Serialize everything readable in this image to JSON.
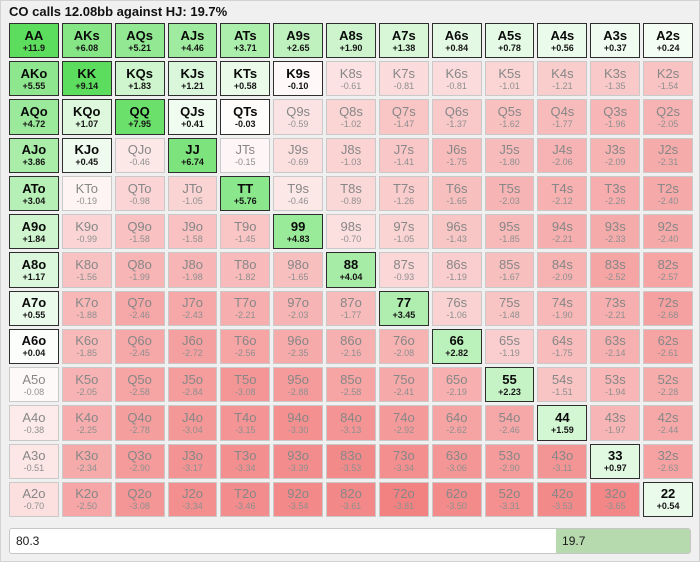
{
  "title": "CO calls 12.08bb against HJ: 19.7%",
  "colors": {
    "call_green_max": "#5ddd5d",
    "fold_red_max": "#f27f7f",
    "bar_call_green": "#b6d9ad",
    "bar_fold_white": "#ffffff"
  },
  "footer": {
    "fold_pct": "80.3",
    "call_pct": "19.7"
  },
  "grid": {
    "rows": [
      [
        {
          "h": "AA",
          "v": "+11.9",
          "c": 1
        },
        {
          "h": "AKs",
          "v": "+6.08",
          "c": 1
        },
        {
          "h": "AQs",
          "v": "+5.21",
          "c": 1
        },
        {
          "h": "AJs",
          "v": "+4.46",
          "c": 1
        },
        {
          "h": "ATs",
          "v": "+3.71",
          "c": 1
        },
        {
          "h": "A9s",
          "v": "+2.65",
          "c": 1
        },
        {
          "h": "A8s",
          "v": "+1.90",
          "c": 1
        },
        {
          "h": "A7s",
          "v": "+1.38",
          "c": 1
        },
        {
          "h": "A6s",
          "v": "+0.84",
          "c": 1
        },
        {
          "h": "A5s",
          "v": "+0.78",
          "c": 1
        },
        {
          "h": "A4s",
          "v": "+0.56",
          "c": 1
        },
        {
          "h": "A3s",
          "v": "+0.37",
          "c": 1
        },
        {
          "h": "A2s",
          "v": "+0.24",
          "c": 1
        }
      ],
      [
        {
          "h": "AKo",
          "v": "+5.55",
          "c": 1
        },
        {
          "h": "KK",
          "v": "+9.14",
          "c": 1
        },
        {
          "h": "KQs",
          "v": "+1.83",
          "c": 1
        },
        {
          "h": "KJs",
          "v": "+1.21",
          "c": 1
        },
        {
          "h": "KTs",
          "v": "+0.58",
          "c": 1
        },
        {
          "h": "K9s",
          "v": "-0.10",
          "c": 1
        },
        {
          "h": "K8s",
          "v": "-0.61",
          "c": 0
        },
        {
          "h": "K7s",
          "v": "-0.81",
          "c": 0
        },
        {
          "h": "K6s",
          "v": "-0.81",
          "c": 0
        },
        {
          "h": "K5s",
          "v": "-1.01",
          "c": 0
        },
        {
          "h": "K4s",
          "v": "-1.21",
          "c": 0
        },
        {
          "h": "K3s",
          "v": "-1.35",
          "c": 0
        },
        {
          "h": "K2s",
          "v": "-1.54",
          "c": 0
        }
      ],
      [
        {
          "h": "AQo",
          "v": "+4.72",
          "c": 1
        },
        {
          "h": "KQo",
          "v": "+1.07",
          "c": 1
        },
        {
          "h": "QQ",
          "v": "+7.95",
          "c": 1
        },
        {
          "h": "QJs",
          "v": "+0.41",
          "c": 1
        },
        {
          "h": "QTs",
          "v": "-0.03",
          "c": 1
        },
        {
          "h": "Q9s",
          "v": "-0.59",
          "c": 0
        },
        {
          "h": "Q8s",
          "v": "-1.02",
          "c": 0
        },
        {
          "h": "Q7s",
          "v": "-1.47",
          "c": 0
        },
        {
          "h": "Q6s",
          "v": "-1.37",
          "c": 0
        },
        {
          "h": "Q5s",
          "v": "-1.62",
          "c": 0
        },
        {
          "h": "Q4s",
          "v": "-1.77",
          "c": 0
        },
        {
          "h": "Q3s",
          "v": "-1.96",
          "c": 0
        },
        {
          "h": "Q2s",
          "v": "-2.05",
          "c": 0
        }
      ],
      [
        {
          "h": "AJo",
          "v": "+3.86",
          "c": 1
        },
        {
          "h": "KJo",
          "v": "+0.45",
          "c": 1
        },
        {
          "h": "QJo",
          "v": "-0.46",
          "c": 0
        },
        {
          "h": "JJ",
          "v": "+6.74",
          "c": 1
        },
        {
          "h": "JTs",
          "v": "-0.15",
          "c": 0
        },
        {
          "h": "J9s",
          "v": "-0.69",
          "c": 0
        },
        {
          "h": "J8s",
          "v": "-1.03",
          "c": 0
        },
        {
          "h": "J7s",
          "v": "-1.41",
          "c": 0
        },
        {
          "h": "J6s",
          "v": "-1.75",
          "c": 0
        },
        {
          "h": "J5s",
          "v": "-1.80",
          "c": 0
        },
        {
          "h": "J4s",
          "v": "-2.06",
          "c": 0
        },
        {
          "h": "J3s",
          "v": "-2.09",
          "c": 0
        },
        {
          "h": "J2s",
          "v": "-2.31",
          "c": 0
        }
      ],
      [
        {
          "h": "ATo",
          "v": "+3.04",
          "c": 1
        },
        {
          "h": "KTo",
          "v": "-0.19",
          "c": 0
        },
        {
          "h": "QTo",
          "v": "-0.98",
          "c": 0
        },
        {
          "h": "JTo",
          "v": "-1.05",
          "c": 0
        },
        {
          "h": "TT",
          "v": "+5.76",
          "c": 1
        },
        {
          "h": "T9s",
          "v": "-0.46",
          "c": 0
        },
        {
          "h": "T8s",
          "v": "-0.89",
          "c": 0
        },
        {
          "h": "T7s",
          "v": "-1.26",
          "c": 0
        },
        {
          "h": "T6s",
          "v": "-1.65",
          "c": 0
        },
        {
          "h": "T5s",
          "v": "-2.03",
          "c": 0
        },
        {
          "h": "T4s",
          "v": "-2.12",
          "c": 0
        },
        {
          "h": "T3s",
          "v": "-2.26",
          "c": 0
        },
        {
          "h": "T2s",
          "v": "-2.40",
          "c": 0
        }
      ],
      [
        {
          "h": "A9o",
          "v": "+1.84",
          "c": 1
        },
        {
          "h": "K9o",
          "v": "-0.99",
          "c": 0
        },
        {
          "h": "Q9o",
          "v": "-1.58",
          "c": 0
        },
        {
          "h": "J9o",
          "v": "-1.58",
          "c": 0
        },
        {
          "h": "T9o",
          "v": "-1.45",
          "c": 0
        },
        {
          "h": "99",
          "v": "+4.83",
          "c": 1
        },
        {
          "h": "98s",
          "v": "-0.70",
          "c": 0
        },
        {
          "h": "97s",
          "v": "-1.05",
          "c": 0
        },
        {
          "h": "96s",
          "v": "-1.43",
          "c": 0
        },
        {
          "h": "95s",
          "v": "-1.85",
          "c": 0
        },
        {
          "h": "94s",
          "v": "-2.21",
          "c": 0
        },
        {
          "h": "93s",
          "v": "-2.33",
          "c": 0
        },
        {
          "h": "92s",
          "v": "-2.40",
          "c": 0
        }
      ],
      [
        {
          "h": "A8o",
          "v": "+1.17",
          "c": 1
        },
        {
          "h": "K8o",
          "v": "-1.56",
          "c": 0
        },
        {
          "h": "Q8o",
          "v": "-1.99",
          "c": 0
        },
        {
          "h": "J8o",
          "v": "-1.98",
          "c": 0
        },
        {
          "h": "T8o",
          "v": "-1.82",
          "c": 0
        },
        {
          "h": "98o",
          "v": "-1.65",
          "c": 0
        },
        {
          "h": "88",
          "v": "+4.04",
          "c": 1
        },
        {
          "h": "87s",
          "v": "-0.93",
          "c": 0
        },
        {
          "h": "86s",
          "v": "-1.19",
          "c": 0
        },
        {
          "h": "85s",
          "v": "-1.67",
          "c": 0
        },
        {
          "h": "84s",
          "v": "-2.09",
          "c": 0
        },
        {
          "h": "83s",
          "v": "-2.52",
          "c": 0
        },
        {
          "h": "82s",
          "v": "-2.57",
          "c": 0
        }
      ],
      [
        {
          "h": "A7o",
          "v": "+0.55",
          "c": 1
        },
        {
          "h": "K7o",
          "v": "-1.88",
          "c": 0
        },
        {
          "h": "Q7o",
          "v": "-2.46",
          "c": 0
        },
        {
          "h": "J7o",
          "v": "-2.43",
          "c": 0
        },
        {
          "h": "T7o",
          "v": "-2.21",
          "c": 0
        },
        {
          "h": "97o",
          "v": "-2.03",
          "c": 0
        },
        {
          "h": "87o",
          "v": "-1.77",
          "c": 0
        },
        {
          "h": "77",
          "v": "+3.45",
          "c": 1
        },
        {
          "h": "76s",
          "v": "-1.06",
          "c": 0
        },
        {
          "h": "75s",
          "v": "-1.48",
          "c": 0
        },
        {
          "h": "74s",
          "v": "-1.90",
          "c": 0
        },
        {
          "h": "73s",
          "v": "-2.21",
          "c": 0
        },
        {
          "h": "72s",
          "v": "-2.68",
          "c": 0
        }
      ],
      [
        {
          "h": "A6o",
          "v": "+0.04",
          "c": 1
        },
        {
          "h": "K6o",
          "v": "-1.85",
          "c": 0
        },
        {
          "h": "Q6o",
          "v": "-2.45",
          "c": 0
        },
        {
          "h": "J6o",
          "v": "-2.72",
          "c": 0
        },
        {
          "h": "T6o",
          "v": "-2.56",
          "c": 0
        },
        {
          "h": "96o",
          "v": "-2.35",
          "c": 0
        },
        {
          "h": "86o",
          "v": "-2.16",
          "c": 0
        },
        {
          "h": "76o",
          "v": "-2.08",
          "c": 0
        },
        {
          "h": "66",
          "v": "+2.82",
          "c": 1
        },
        {
          "h": "65s",
          "v": "-1.19",
          "c": 0
        },
        {
          "h": "64s",
          "v": "-1.75",
          "c": 0
        },
        {
          "h": "63s",
          "v": "-2.14",
          "c": 0
        },
        {
          "h": "62s",
          "v": "-2.61",
          "c": 0
        }
      ],
      [
        {
          "h": "A5o",
          "v": "-0.08",
          "c": 0
        },
        {
          "h": "K5o",
          "v": "-2.05",
          "c": 0
        },
        {
          "h": "Q5o",
          "v": "-2.58",
          "c": 0
        },
        {
          "h": "J5o",
          "v": "-2.84",
          "c": 0
        },
        {
          "h": "T5o",
          "v": "-3.08",
          "c": 0
        },
        {
          "h": "95o",
          "v": "-2.88",
          "c": 0
        },
        {
          "h": "85o",
          "v": "-2.58",
          "c": 0
        },
        {
          "h": "75o",
          "v": "-2.41",
          "c": 0
        },
        {
          "h": "65o",
          "v": "-2.19",
          "c": 0
        },
        {
          "h": "55",
          "v": "+2.23",
          "c": 1
        },
        {
          "h": "54s",
          "v": "-1.51",
          "c": 0
        },
        {
          "h": "53s",
          "v": "-1.94",
          "c": 0
        },
        {
          "h": "52s",
          "v": "-2.28",
          "c": 0
        }
      ],
      [
        {
          "h": "A4o",
          "v": "-0.38",
          "c": 0
        },
        {
          "h": "K4o",
          "v": "-2.25",
          "c": 0
        },
        {
          "h": "Q4o",
          "v": "-2.78",
          "c": 0
        },
        {
          "h": "J4o",
          "v": "-3.04",
          "c": 0
        },
        {
          "h": "T4o",
          "v": "-3.15",
          "c": 0
        },
        {
          "h": "94o",
          "v": "-3.30",
          "c": 0
        },
        {
          "h": "84o",
          "v": "-3.13",
          "c": 0
        },
        {
          "h": "74o",
          "v": "-2.92",
          "c": 0
        },
        {
          "h": "64o",
          "v": "-2.62",
          "c": 0
        },
        {
          "h": "54o",
          "v": "-2.46",
          "c": 0
        },
        {
          "h": "44",
          "v": "+1.59",
          "c": 1
        },
        {
          "h": "43s",
          "v": "-1.97",
          "c": 0
        },
        {
          "h": "42s",
          "v": "-2.44",
          "c": 0
        }
      ],
      [
        {
          "h": "A3o",
          "v": "-0.51",
          "c": 0
        },
        {
          "h": "K3o",
          "v": "-2.34",
          "c": 0
        },
        {
          "h": "Q3o",
          "v": "-2.90",
          "c": 0
        },
        {
          "h": "J3o",
          "v": "-3.17",
          "c": 0
        },
        {
          "h": "T3o",
          "v": "-3.34",
          "c": 0
        },
        {
          "h": "93o",
          "v": "-3.39",
          "c": 0
        },
        {
          "h": "83o",
          "v": "-3.53",
          "c": 0
        },
        {
          "h": "73o",
          "v": "-3.34",
          "c": 0
        },
        {
          "h": "63o",
          "v": "-3.06",
          "c": 0
        },
        {
          "h": "53o",
          "v": "-2.90",
          "c": 0
        },
        {
          "h": "43o",
          "v": "-3.11",
          "c": 0
        },
        {
          "h": "33",
          "v": "+0.97",
          "c": 1
        },
        {
          "h": "32s",
          "v": "-2.63",
          "c": 0
        }
      ],
      [
        {
          "h": "A2o",
          "v": "-0.70",
          "c": 0
        },
        {
          "h": "K2o",
          "v": "-2.50",
          "c": 0
        },
        {
          "h": "Q2o",
          "v": "-3.08",
          "c": 0
        },
        {
          "h": "J2o",
          "v": "-3.34",
          "c": 0
        },
        {
          "h": "T2o",
          "v": "-3.46",
          "c": 0
        },
        {
          "h": "92o",
          "v": "-3.54",
          "c": 0
        },
        {
          "h": "82o",
          "v": "-3.61",
          "c": 0
        },
        {
          "h": "72o",
          "v": "-3.81",
          "c": 0
        },
        {
          "h": "62o",
          "v": "-3.50",
          "c": 0
        },
        {
          "h": "52o",
          "v": "-3.31",
          "c": 0
        },
        {
          "h": "42o",
          "v": "-3.53",
          "c": 0
        },
        {
          "h": "32o",
          "v": "-3.65",
          "c": 0
        },
        {
          "h": "22",
          "v": "+0.54",
          "c": 1
        }
      ]
    ]
  }
}
